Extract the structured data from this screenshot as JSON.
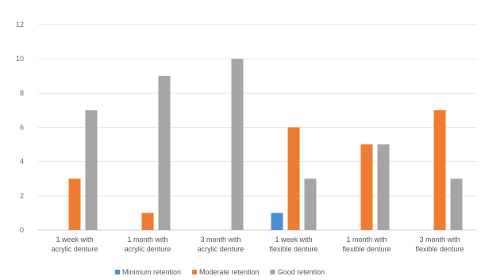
{
  "chart_data": {
    "type": "bar",
    "categories": [
      [
        "1 week with",
        "acrylic denture"
      ],
      [
        "1 month with",
        "acrylic denture"
      ],
      [
        "3 month with",
        "acrylic denture"
      ],
      [
        "1 week with",
        "flexible denture"
      ],
      [
        "1 month with",
        "flexible denture"
      ],
      [
        "3 month with",
        "flexible denture"
      ]
    ],
    "series": [
      {
        "name": "Minimum retention",
        "color": "#4a8fd4",
        "values": [
          0,
          0,
          0,
          1,
          0,
          0
        ]
      },
      {
        "name": "Moderate retention",
        "color": "#ee7d31",
        "values": [
          3,
          1,
          0,
          6,
          5,
          7
        ]
      },
      {
        "name": "Good retention",
        "color": "#a5a5a5",
        "values": [
          7,
          9,
          10,
          3,
          5,
          3
        ]
      }
    ],
    "ylim": [
      0,
      12
    ],
    "yticks": [
      0,
      2,
      4,
      6,
      8,
      10,
      12
    ],
    "grid": true,
    "legend_position": "bottom"
  }
}
